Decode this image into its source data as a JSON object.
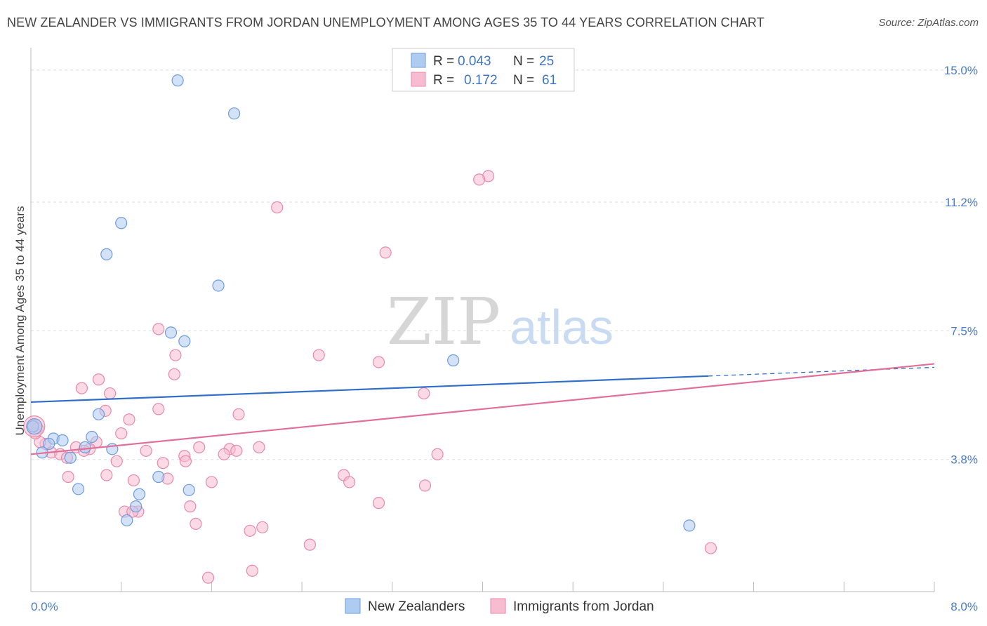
{
  "title": "NEW ZEALANDER VS IMMIGRANTS FROM JORDAN UNEMPLOYMENT AMONG AGES 35 TO 44 YEARS CORRELATION CHART",
  "source": "Source: ZipAtlas.com",
  "watermark": {
    "zip": "ZIP",
    "atlas": "atlas"
  },
  "colors": {
    "blue_fill": "#aecbf0",
    "blue_stroke": "#6d9be0",
    "blue_line": "#2f6fc9",
    "pink_fill": "#f7bccf",
    "pink_stroke": "#e68aa9",
    "pink_line": "#e0709a",
    "grid": "#dddddd",
    "axis_text": "#4a7cc7"
  },
  "legend": {
    "rows": [
      {
        "r_label": "R =",
        "r_value": "0.043",
        "n_label": "N =",
        "n_value": "25"
      },
      {
        "r_label": "R =",
        "r_value": "0.172",
        "n_label": "N =",
        "n_value": "61"
      }
    ]
  },
  "chart_data": {
    "type": "scatter",
    "title": "NEW ZEALANDER VS IMMIGRANTS FROM JORDAN UNEMPLOYMENT AMONG AGES 35 TO 44 YEARS CORRELATION CHART",
    "xlabel": "",
    "ylabel": "Unemployment Among Ages 35 to 44 years",
    "xlim": [
      0.0,
      8.0
    ],
    "ylim": [
      0.0,
      15.5
    ],
    "x_tick_labels": [
      "0.0%",
      "8.0%"
    ],
    "y_ticks": [
      3.8,
      7.5,
      11.2,
      15.0
    ],
    "y_tick_labels": [
      "3.8%",
      "7.5%",
      "11.2%",
      "15.0%"
    ],
    "series": [
      {
        "name": "New Zealanders",
        "color": "blue",
        "r": 0.043,
        "n": 25,
        "trend": {
          "x0": 0.0,
          "y0": 5.45,
          "x1": 6.0,
          "y1": 6.2,
          "dash_x1": 8.0,
          "dash_y1": 6.45
        },
        "points": [
          [
            1.3,
            14.7
          ],
          [
            1.8,
            13.75
          ],
          [
            0.8,
            10.6
          ],
          [
            0.67,
            9.7
          ],
          [
            1.66,
            8.8
          ],
          [
            1.24,
            7.45
          ],
          [
            1.36,
            7.2
          ],
          [
            3.74,
            6.65
          ],
          [
            0.6,
            5.1
          ],
          [
            0.2,
            4.4
          ],
          [
            0.28,
            4.35
          ],
          [
            0.54,
            4.45
          ],
          [
            0.16,
            4.25
          ],
          [
            0.48,
            4.15
          ],
          [
            0.72,
            4.1
          ],
          [
            0.1,
            4.0
          ],
          [
            0.35,
            3.85
          ],
          [
            1.13,
            3.3
          ],
          [
            0.42,
            2.95
          ],
          [
            1.4,
            2.92
          ],
          [
            0.96,
            2.8
          ],
          [
            0.93,
            2.45
          ],
          [
            0.85,
            2.05
          ],
          [
            5.83,
            1.9
          ],
          [
            0.02,
            4.75
          ]
        ]
      },
      {
        "name": "Immigrants from Jordan",
        "color": "pink",
        "r": 0.172,
        "n": 61,
        "trend": {
          "x0": 0.0,
          "y0": 3.95,
          "x1": 8.0,
          "y1": 6.55
        },
        "points": [
          [
            4.05,
            11.95
          ],
          [
            3.97,
            11.85
          ],
          [
            2.18,
            11.05
          ],
          [
            3.14,
            9.75
          ],
          [
            1.13,
            7.55
          ],
          [
            1.28,
            6.8
          ],
          [
            2.55,
            6.8
          ],
          [
            3.08,
            6.6
          ],
          [
            1.27,
            6.25
          ],
          [
            0.6,
            6.1
          ],
          [
            0.45,
            5.85
          ],
          [
            0.7,
            5.7
          ],
          [
            3.48,
            5.7
          ],
          [
            1.13,
            5.25
          ],
          [
            0.66,
            5.2
          ],
          [
            1.84,
            5.1
          ],
          [
            0.87,
            4.95
          ],
          [
            0.02,
            4.8
          ],
          [
            0.06,
            4.7
          ],
          [
            0.8,
            4.55
          ],
          [
            0.58,
            4.3
          ],
          [
            0.13,
            4.25
          ],
          [
            0.4,
            4.15
          ],
          [
            0.52,
            4.1
          ],
          [
            0.47,
            4.05
          ],
          [
            2.02,
            4.15
          ],
          [
            1.49,
            4.15
          ],
          [
            1.76,
            4.1
          ],
          [
            1.82,
            4.05
          ],
          [
            1.02,
            4.05
          ],
          [
            0.18,
            4.0
          ],
          [
            0.26,
            3.95
          ],
          [
            1.71,
            3.95
          ],
          [
            1.36,
            3.9
          ],
          [
            3.6,
            3.95
          ],
          [
            0.32,
            3.85
          ],
          [
            0.76,
            3.75
          ],
          [
            1.17,
            3.7
          ],
          [
            1.37,
            3.75
          ],
          [
            0.67,
            3.35
          ],
          [
            0.33,
            3.3
          ],
          [
            2.77,
            3.35
          ],
          [
            0.91,
            3.2
          ],
          [
            1.21,
            3.25
          ],
          [
            1.6,
            3.15
          ],
          [
            2.82,
            3.15
          ],
          [
            3.49,
            3.05
          ],
          [
            3.08,
            2.55
          ],
          [
            1.41,
            2.45
          ],
          [
            0.83,
            2.3
          ],
          [
            0.95,
            2.3
          ],
          [
            1.46,
            1.95
          ],
          [
            2.05,
            1.85
          ],
          [
            1.94,
            1.75
          ],
          [
            2.47,
            1.35
          ],
          [
            6.02,
            1.25
          ],
          [
            1.96,
            0.6
          ],
          [
            1.57,
            0.4
          ],
          [
            0.08,
            4.3
          ],
          [
            0.04,
            4.55
          ],
          [
            0.9,
            2.3
          ]
        ]
      }
    ]
  }
}
